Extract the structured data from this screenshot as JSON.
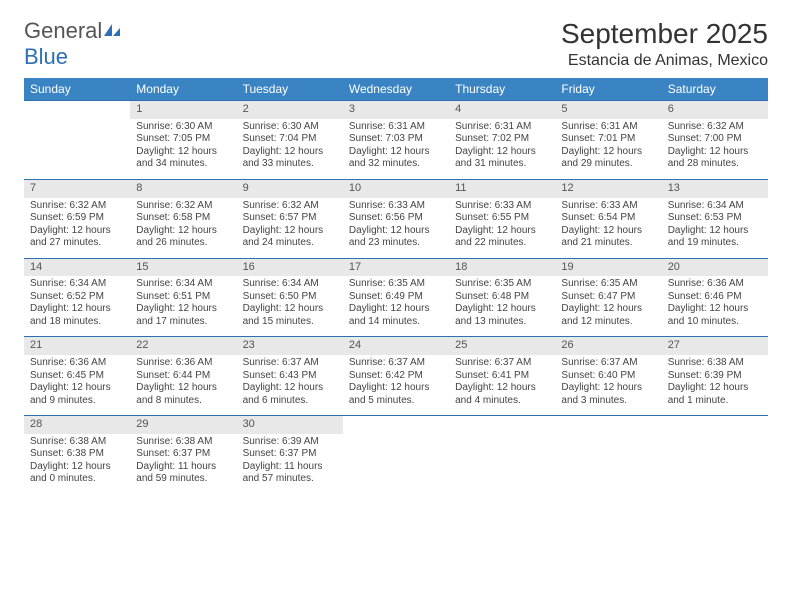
{
  "logo": {
    "text1": "General",
    "text2": "Blue"
  },
  "title": "September 2025",
  "location": "Estancia de Animas, Mexico",
  "columns": [
    "Sunday",
    "Monday",
    "Tuesday",
    "Wednesday",
    "Thursday",
    "Friday",
    "Saturday"
  ],
  "colors": {
    "header_bg": "#3b84c4",
    "header_fg": "#ffffff",
    "daynum_bg": "#e8e8e8",
    "row_border": "#2e6fb4",
    "logo_blue": "#2e6fb4"
  },
  "weeks": [
    [
      null,
      {
        "n": "1",
        "sr": "Sunrise: 6:30 AM",
        "ss": "Sunset: 7:05 PM",
        "d1": "Daylight: 12 hours",
        "d2": "and 34 minutes."
      },
      {
        "n": "2",
        "sr": "Sunrise: 6:30 AM",
        "ss": "Sunset: 7:04 PM",
        "d1": "Daylight: 12 hours",
        "d2": "and 33 minutes."
      },
      {
        "n": "3",
        "sr": "Sunrise: 6:31 AM",
        "ss": "Sunset: 7:03 PM",
        "d1": "Daylight: 12 hours",
        "d2": "and 32 minutes."
      },
      {
        "n": "4",
        "sr": "Sunrise: 6:31 AM",
        "ss": "Sunset: 7:02 PM",
        "d1": "Daylight: 12 hours",
        "d2": "and 31 minutes."
      },
      {
        "n": "5",
        "sr": "Sunrise: 6:31 AM",
        "ss": "Sunset: 7:01 PM",
        "d1": "Daylight: 12 hours",
        "d2": "and 29 minutes."
      },
      {
        "n": "6",
        "sr": "Sunrise: 6:32 AM",
        "ss": "Sunset: 7:00 PM",
        "d1": "Daylight: 12 hours",
        "d2": "and 28 minutes."
      }
    ],
    [
      {
        "n": "7",
        "sr": "Sunrise: 6:32 AM",
        "ss": "Sunset: 6:59 PM",
        "d1": "Daylight: 12 hours",
        "d2": "and 27 minutes."
      },
      {
        "n": "8",
        "sr": "Sunrise: 6:32 AM",
        "ss": "Sunset: 6:58 PM",
        "d1": "Daylight: 12 hours",
        "d2": "and 26 minutes."
      },
      {
        "n": "9",
        "sr": "Sunrise: 6:32 AM",
        "ss": "Sunset: 6:57 PM",
        "d1": "Daylight: 12 hours",
        "d2": "and 24 minutes."
      },
      {
        "n": "10",
        "sr": "Sunrise: 6:33 AM",
        "ss": "Sunset: 6:56 PM",
        "d1": "Daylight: 12 hours",
        "d2": "and 23 minutes."
      },
      {
        "n": "11",
        "sr": "Sunrise: 6:33 AM",
        "ss": "Sunset: 6:55 PM",
        "d1": "Daylight: 12 hours",
        "d2": "and 22 minutes."
      },
      {
        "n": "12",
        "sr": "Sunrise: 6:33 AM",
        "ss": "Sunset: 6:54 PM",
        "d1": "Daylight: 12 hours",
        "d2": "and 21 minutes."
      },
      {
        "n": "13",
        "sr": "Sunrise: 6:34 AM",
        "ss": "Sunset: 6:53 PM",
        "d1": "Daylight: 12 hours",
        "d2": "and 19 minutes."
      }
    ],
    [
      {
        "n": "14",
        "sr": "Sunrise: 6:34 AM",
        "ss": "Sunset: 6:52 PM",
        "d1": "Daylight: 12 hours",
        "d2": "and 18 minutes."
      },
      {
        "n": "15",
        "sr": "Sunrise: 6:34 AM",
        "ss": "Sunset: 6:51 PM",
        "d1": "Daylight: 12 hours",
        "d2": "and 17 minutes."
      },
      {
        "n": "16",
        "sr": "Sunrise: 6:34 AM",
        "ss": "Sunset: 6:50 PM",
        "d1": "Daylight: 12 hours",
        "d2": "and 15 minutes."
      },
      {
        "n": "17",
        "sr": "Sunrise: 6:35 AM",
        "ss": "Sunset: 6:49 PM",
        "d1": "Daylight: 12 hours",
        "d2": "and 14 minutes."
      },
      {
        "n": "18",
        "sr": "Sunrise: 6:35 AM",
        "ss": "Sunset: 6:48 PM",
        "d1": "Daylight: 12 hours",
        "d2": "and 13 minutes."
      },
      {
        "n": "19",
        "sr": "Sunrise: 6:35 AM",
        "ss": "Sunset: 6:47 PM",
        "d1": "Daylight: 12 hours",
        "d2": "and 12 minutes."
      },
      {
        "n": "20",
        "sr": "Sunrise: 6:36 AM",
        "ss": "Sunset: 6:46 PM",
        "d1": "Daylight: 12 hours",
        "d2": "and 10 minutes."
      }
    ],
    [
      {
        "n": "21",
        "sr": "Sunrise: 6:36 AM",
        "ss": "Sunset: 6:45 PM",
        "d1": "Daylight: 12 hours",
        "d2": "and 9 minutes."
      },
      {
        "n": "22",
        "sr": "Sunrise: 6:36 AM",
        "ss": "Sunset: 6:44 PM",
        "d1": "Daylight: 12 hours",
        "d2": "and 8 minutes."
      },
      {
        "n": "23",
        "sr": "Sunrise: 6:37 AM",
        "ss": "Sunset: 6:43 PM",
        "d1": "Daylight: 12 hours",
        "d2": "and 6 minutes."
      },
      {
        "n": "24",
        "sr": "Sunrise: 6:37 AM",
        "ss": "Sunset: 6:42 PM",
        "d1": "Daylight: 12 hours",
        "d2": "and 5 minutes."
      },
      {
        "n": "25",
        "sr": "Sunrise: 6:37 AM",
        "ss": "Sunset: 6:41 PM",
        "d1": "Daylight: 12 hours",
        "d2": "and 4 minutes."
      },
      {
        "n": "26",
        "sr": "Sunrise: 6:37 AM",
        "ss": "Sunset: 6:40 PM",
        "d1": "Daylight: 12 hours",
        "d2": "and 3 minutes."
      },
      {
        "n": "27",
        "sr": "Sunrise: 6:38 AM",
        "ss": "Sunset: 6:39 PM",
        "d1": "Daylight: 12 hours",
        "d2": "and 1 minute."
      }
    ],
    [
      {
        "n": "28",
        "sr": "Sunrise: 6:38 AM",
        "ss": "Sunset: 6:38 PM",
        "d1": "Daylight: 12 hours",
        "d2": "and 0 minutes."
      },
      {
        "n": "29",
        "sr": "Sunrise: 6:38 AM",
        "ss": "Sunset: 6:37 PM",
        "d1": "Daylight: 11 hours",
        "d2": "and 59 minutes."
      },
      {
        "n": "30",
        "sr": "Sunrise: 6:39 AM",
        "ss": "Sunset: 6:37 PM",
        "d1": "Daylight: 11 hours",
        "d2": "and 57 minutes."
      },
      null,
      null,
      null,
      null
    ]
  ]
}
